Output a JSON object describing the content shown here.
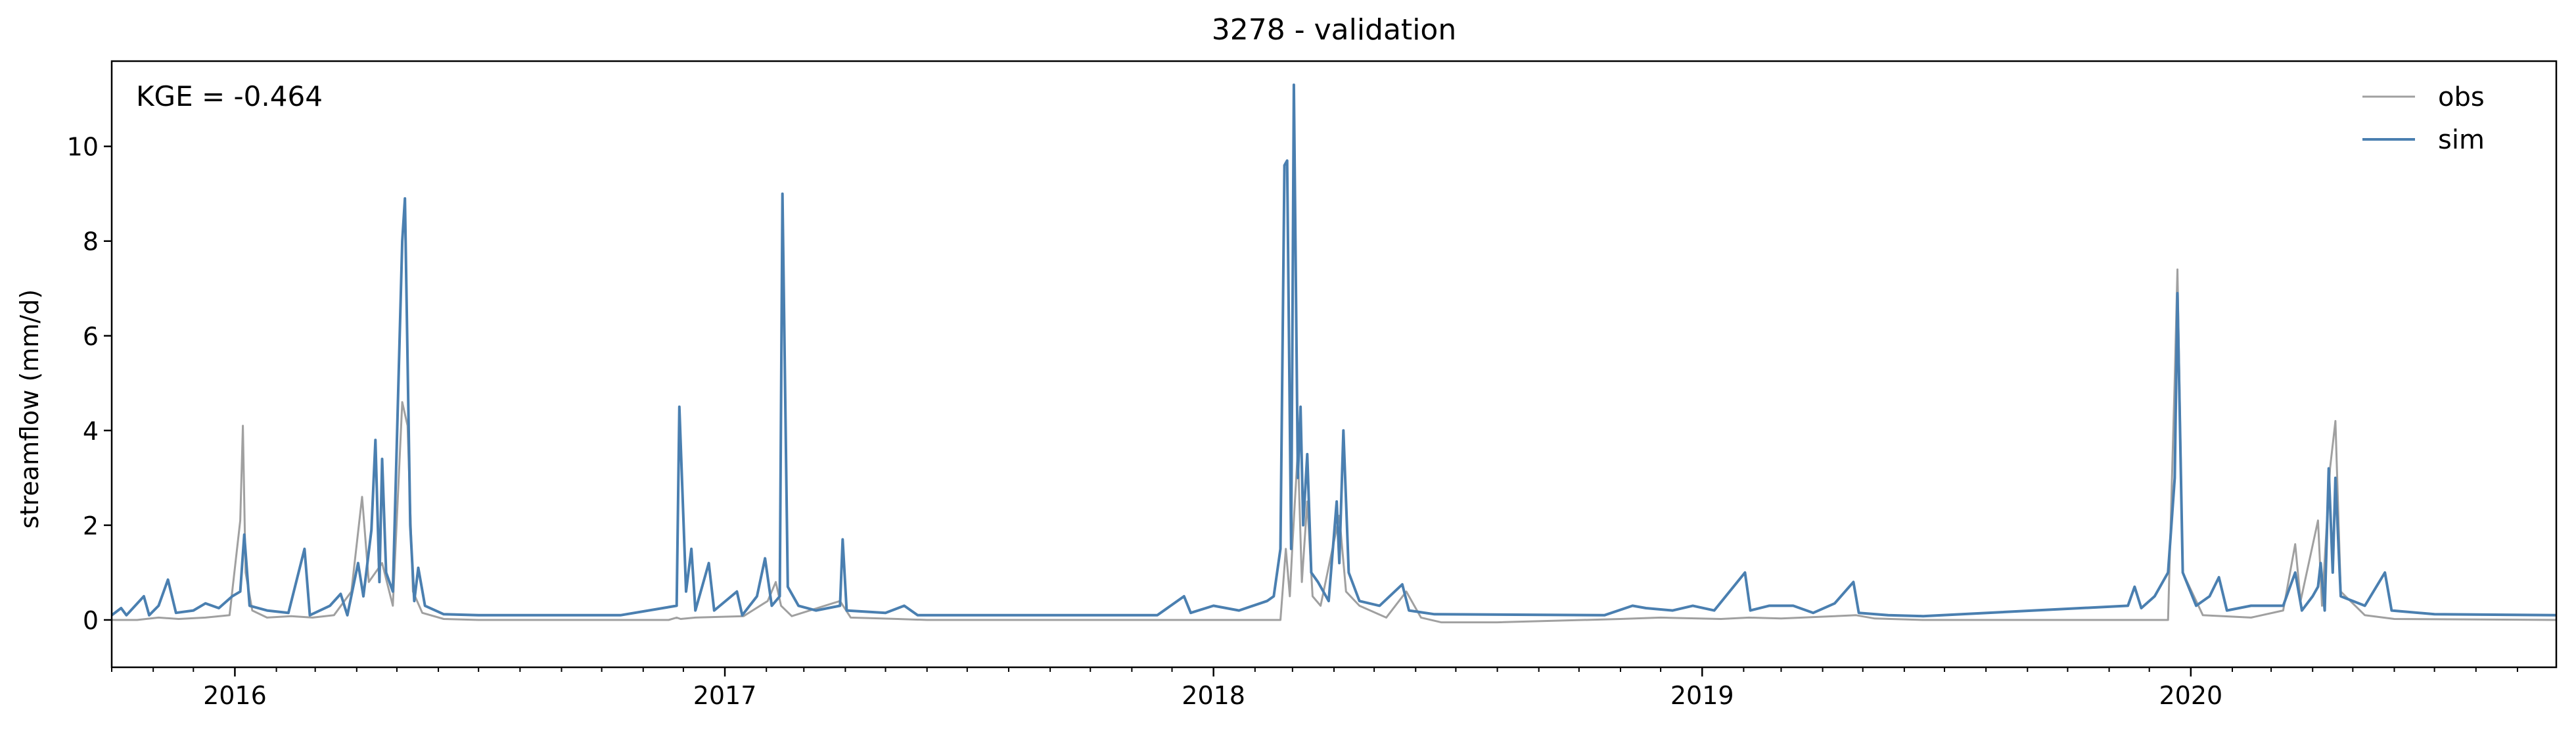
{
  "chart_data": {
    "type": "line",
    "title": "3278 - validation",
    "xlabel": "",
    "ylabel": "streamflow (mm/d)",
    "annotation": "KGE = -0.464",
    "xlim": [
      "2015-10-01",
      "2020-09-30"
    ],
    "ylim": [
      -1,
      11.8
    ],
    "yticks": [
      0,
      2,
      4,
      6,
      8,
      10
    ],
    "xticks": [
      {
        "label": "2016",
        "date": "2016-01-01"
      },
      {
        "label": "2017",
        "date": "2017-01-01"
      },
      {
        "label": "2018",
        "date": "2018-01-01"
      },
      {
        "label": "2019",
        "date": "2019-01-01"
      },
      {
        "label": "2020",
        "date": "2020-01-01"
      }
    ],
    "legend": {
      "position": "top-right"
    },
    "grid": false,
    "series": [
      {
        "name": "obs",
        "color": "#a0a0a0",
        "points": [
          [
            "2015-10-01",
            0.0
          ],
          [
            "2015-10-20",
            0.0
          ],
          [
            "2015-11-05",
            0.05
          ],
          [
            "2015-11-20",
            0.02
          ],
          [
            "2015-12-10",
            0.05
          ],
          [
            "2015-12-28",
            0.1
          ],
          [
            "2016-01-05",
            2.1
          ],
          [
            "2016-01-07",
            4.1
          ],
          [
            "2016-01-09",
            1.0
          ],
          [
            "2016-01-14",
            0.2
          ],
          [
            "2016-01-25",
            0.05
          ],
          [
            "2016-02-12",
            0.08
          ],
          [
            "2016-02-28",
            0.05
          ],
          [
            "2016-03-15",
            0.1
          ],
          [
            "2016-03-28",
            0.6
          ],
          [
            "2016-04-05",
            2.6
          ],
          [
            "2016-04-10",
            0.8
          ],
          [
            "2016-04-20",
            1.2
          ],
          [
            "2016-04-28",
            0.3
          ],
          [
            "2016-05-05",
            4.6
          ],
          [
            "2016-05-09",
            4.1
          ],
          [
            "2016-05-13",
            0.6
          ],
          [
            "2016-05-20",
            0.15
          ],
          [
            "2016-06-05",
            0.02
          ],
          [
            "2016-07-01",
            0.0
          ],
          [
            "2016-09-01",
            0.0
          ],
          [
            "2016-11-20",
            0.0
          ],
          [
            "2016-11-26",
            0.05
          ],
          [
            "2016-11-29",
            0.02
          ],
          [
            "2016-12-10",
            0.05
          ],
          [
            "2017-01-15",
            0.08
          ],
          [
            "2017-02-02",
            0.4
          ],
          [
            "2017-02-08",
            0.8
          ],
          [
            "2017-02-12",
            0.3
          ],
          [
            "2017-02-20",
            0.08
          ],
          [
            "2017-03-28",
            0.4
          ],
          [
            "2017-04-05",
            0.05
          ],
          [
            "2017-05-10",
            0.02
          ],
          [
            "2017-06-01",
            0.0
          ],
          [
            "2017-11-10",
            0.0
          ],
          [
            "2018-01-01",
            0.0
          ],
          [
            "2018-02-20",
            0.0
          ],
          [
            "2018-02-24",
            1.5
          ],
          [
            "2018-02-27",
            0.5
          ],
          [
            "2018-03-01",
            1.6
          ],
          [
            "2018-03-05",
            3.6
          ],
          [
            "2018-03-08",
            0.8
          ],
          [
            "2018-03-12",
            2.5
          ],
          [
            "2018-03-16",
            0.5
          ],
          [
            "2018-03-22",
            0.3
          ],
          [
            "2018-04-05",
            2.2
          ],
          [
            "2018-04-10",
            0.6
          ],
          [
            "2018-04-20",
            0.3
          ],
          [
            "2018-05-10",
            0.05
          ],
          [
            "2018-05-25",
            0.6
          ],
          [
            "2018-06-05",
            0.05
          ],
          [
            "2018-06-20",
            -0.05
          ],
          [
            "2018-08-01",
            -0.05
          ],
          [
            "2018-11-01",
            0.02
          ],
          [
            "2018-12-01",
            0.05
          ],
          [
            "2019-01-15",
            0.02
          ],
          [
            "2019-02-05",
            0.05
          ],
          [
            "2019-03-01",
            0.03
          ],
          [
            "2019-04-26",
            0.1
          ],
          [
            "2019-05-10",
            0.03
          ],
          [
            "2019-06-15",
            0.0
          ],
          [
            "2019-11-01",
            0.0
          ],
          [
            "2019-12-15",
            0.0
          ],
          [
            "2019-12-20",
            5.1
          ],
          [
            "2019-12-22",
            7.4
          ],
          [
            "2019-12-26",
            1.0
          ],
          [
            "2020-01-10",
            0.1
          ],
          [
            "2020-02-15",
            0.05
          ],
          [
            "2020-03-10",
            0.2
          ],
          [
            "2020-03-19",
            1.6
          ],
          [
            "2020-03-23",
            0.4
          ],
          [
            "2020-04-05",
            2.1
          ],
          [
            "2020-04-08",
            0.3
          ],
          [
            "2020-04-14",
            3.2
          ],
          [
            "2020-04-18",
            4.2
          ],
          [
            "2020-04-22",
            0.6
          ],
          [
            "2020-05-10",
            0.1
          ],
          [
            "2020-06-01",
            0.02
          ],
          [
            "2020-09-30",
            0.0
          ]
        ]
      },
      {
        "name": "sim",
        "color": "#4a7fb0",
        "points": [
          [
            "2015-10-01",
            0.1
          ],
          [
            "2015-10-08",
            0.25
          ],
          [
            "2015-10-12",
            0.1
          ],
          [
            "2015-10-25",
            0.5
          ],
          [
            "2015-10-29",
            0.1
          ],
          [
            "2015-11-05",
            0.3
          ],
          [
            "2015-11-12",
            0.85
          ],
          [
            "2015-11-18",
            0.15
          ],
          [
            "2015-12-01",
            0.2
          ],
          [
            "2015-12-10",
            0.35
          ],
          [
            "2015-12-20",
            0.25
          ],
          [
            "2015-12-30",
            0.5
          ],
          [
            "2016-01-05",
            0.6
          ],
          [
            "2016-01-08",
            1.8
          ],
          [
            "2016-01-12",
            0.3
          ],
          [
            "2016-01-25",
            0.2
          ],
          [
            "2016-02-10",
            0.15
          ],
          [
            "2016-02-22",
            1.5
          ],
          [
            "2016-02-26",
            0.1
          ],
          [
            "2016-03-12",
            0.3
          ],
          [
            "2016-03-20",
            0.55
          ],
          [
            "2016-03-25",
            0.1
          ],
          [
            "2016-04-02",
            1.2
          ],
          [
            "2016-04-06",
            0.5
          ],
          [
            "2016-04-12",
            1.9
          ],
          [
            "2016-04-15",
            3.8
          ],
          [
            "2016-04-18",
            0.8
          ],
          [
            "2016-04-20",
            3.4
          ],
          [
            "2016-04-23",
            1.0
          ],
          [
            "2016-04-28",
            0.6
          ],
          [
            "2016-05-05",
            8.0
          ],
          [
            "2016-05-07",
            8.9
          ],
          [
            "2016-05-11",
            2.0
          ],
          [
            "2016-05-14",
            0.4
          ],
          [
            "2016-05-17",
            1.1
          ],
          [
            "2016-05-22",
            0.3
          ],
          [
            "2016-06-05",
            0.12
          ],
          [
            "2016-07-01",
            0.1
          ],
          [
            "2016-10-15",
            0.1
          ],
          [
            "2016-11-26",
            0.3
          ],
          [
            "2016-11-28",
            4.5
          ],
          [
            "2016-12-03",
            0.6
          ],
          [
            "2016-12-07",
            1.5
          ],
          [
            "2016-12-10",
            0.2
          ],
          [
            "2016-12-20",
            1.2
          ],
          [
            "2016-12-24",
            0.2
          ],
          [
            "2017-01-10",
            0.6
          ],
          [
            "2017-01-14",
            0.1
          ],
          [
            "2017-01-25",
            0.5
          ],
          [
            "2017-01-31",
            1.3
          ],
          [
            "2017-02-05",
            0.3
          ],
          [
            "2017-02-11",
            0.5
          ],
          [
            "2017-02-13",
            9.0
          ],
          [
            "2017-02-17",
            0.7
          ],
          [
            "2017-02-25",
            0.3
          ],
          [
            "2017-03-10",
            0.2
          ],
          [
            "2017-03-28",
            0.3
          ],
          [
            "2017-03-30",
            1.7
          ],
          [
            "2017-04-02",
            0.2
          ],
          [
            "2017-05-01",
            0.15
          ],
          [
            "2017-05-15",
            0.3
          ],
          [
            "2017-05-25",
            0.1
          ],
          [
            "2017-08-01",
            0.1
          ],
          [
            "2017-11-20",
            0.1
          ],
          [
            "2017-12-10",
            0.5
          ],
          [
            "2017-12-15",
            0.15
          ],
          [
            "2018-01-01",
            0.3
          ],
          [
            "2018-01-20",
            0.2
          ],
          [
            "2018-02-10",
            0.4
          ],
          [
            "2018-02-15",
            0.5
          ],
          [
            "2018-02-20",
            1.5
          ],
          [
            "2018-02-23",
            9.6
          ],
          [
            "2018-02-25",
            9.7
          ],
          [
            "2018-02-28",
            1.5
          ],
          [
            "2018-03-02",
            11.3
          ],
          [
            "2018-03-05",
            3.0
          ],
          [
            "2018-03-07",
            4.5
          ],
          [
            "2018-03-09",
            2.0
          ],
          [
            "2018-03-12",
            3.5
          ],
          [
            "2018-03-15",
            1.0
          ],
          [
            "2018-03-20",
            0.8
          ],
          [
            "2018-03-28",
            0.4
          ],
          [
            "2018-04-03",
            2.5
          ],
          [
            "2018-04-05",
            1.2
          ],
          [
            "2018-04-08",
            4.0
          ],
          [
            "2018-04-12",
            1.0
          ],
          [
            "2018-04-20",
            0.4
          ],
          [
            "2018-05-05",
            0.3
          ],
          [
            "2018-05-22",
            0.75
          ],
          [
            "2018-05-27",
            0.2
          ],
          [
            "2018-06-15",
            0.12
          ],
          [
            "2018-10-20",
            0.1
          ],
          [
            "2018-11-10",
            0.3
          ],
          [
            "2018-11-20",
            0.25
          ],
          [
            "2018-12-10",
            0.2
          ],
          [
            "2018-12-25",
            0.3
          ],
          [
            "2019-01-10",
            0.2
          ],
          [
            "2019-02-02",
            1.0
          ],
          [
            "2019-02-06",
            0.2
          ],
          [
            "2019-02-20",
            0.3
          ],
          [
            "2019-03-10",
            0.3
          ],
          [
            "2019-03-25",
            0.15
          ],
          [
            "2019-04-10",
            0.35
          ],
          [
            "2019-04-24",
            0.8
          ],
          [
            "2019-04-28",
            0.15
          ],
          [
            "2019-05-20",
            0.1
          ],
          [
            "2019-06-15",
            0.08
          ],
          [
            "2019-11-15",
            0.3
          ],
          [
            "2019-11-20",
            0.7
          ],
          [
            "2019-11-25",
            0.25
          ],
          [
            "2019-12-05",
            0.5
          ],
          [
            "2019-12-15",
            1.0
          ],
          [
            "2019-12-20",
            3.0
          ],
          [
            "2019-12-22",
            6.9
          ],
          [
            "2019-12-26",
            1.0
          ],
          [
            "2020-01-05",
            0.3
          ],
          [
            "2020-01-15",
            0.5
          ],
          [
            "2020-01-22",
            0.9
          ],
          [
            "2020-01-28",
            0.2
          ],
          [
            "2020-02-15",
            0.3
          ],
          [
            "2020-03-10",
            0.3
          ],
          [
            "2020-03-19",
            1.0
          ],
          [
            "2020-03-24",
            0.2
          ],
          [
            "2020-04-01",
            0.5
          ],
          [
            "2020-04-05",
            0.7
          ],
          [
            "2020-04-07",
            1.2
          ],
          [
            "2020-04-10",
            0.2
          ],
          [
            "2020-04-13",
            3.2
          ],
          [
            "2020-04-16",
            1.0
          ],
          [
            "2020-04-18",
            3.0
          ],
          [
            "2020-04-22",
            0.5
          ],
          [
            "2020-05-10",
            0.3
          ],
          [
            "2020-05-25",
            1.0
          ],
          [
            "2020-05-30",
            0.2
          ],
          [
            "2020-07-01",
            0.12
          ],
          [
            "2020-09-30",
            0.1
          ]
        ]
      }
    ]
  }
}
